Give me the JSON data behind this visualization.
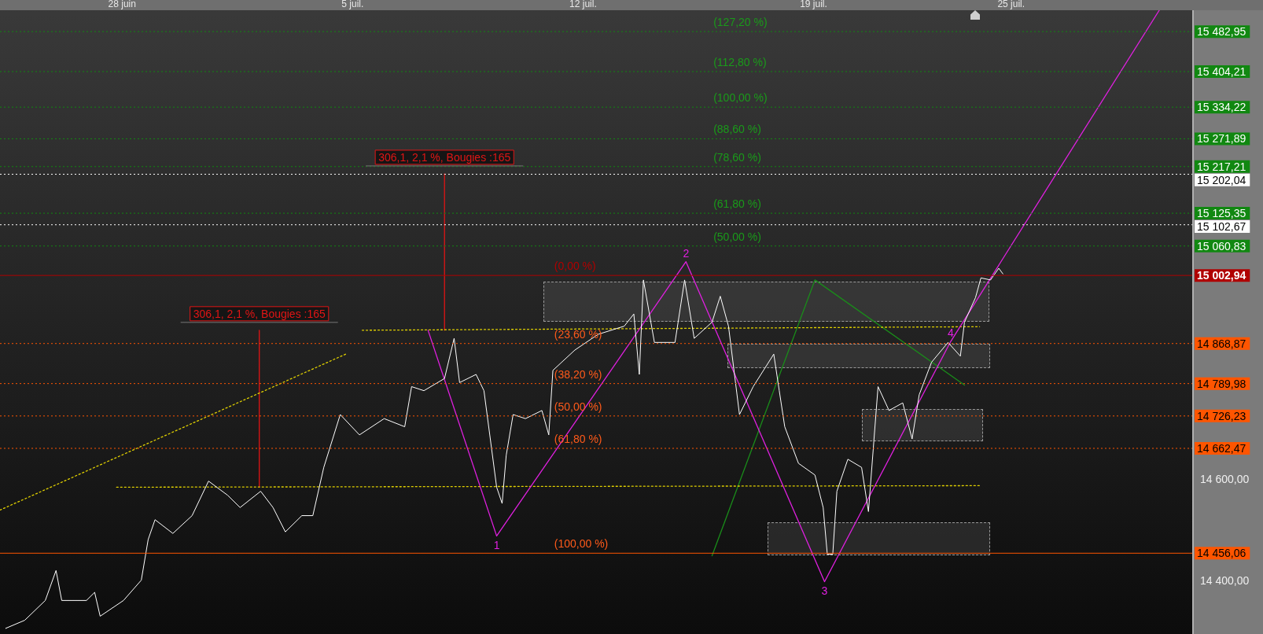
{
  "chart_data": {
    "type": "line",
    "marker": "none",
    "xlim": [
      "--06-24T07:00",
      "--07-30T12:00"
    ],
    "xticks": [
      {
        "value": "--06-28",
        "label": "28 juin"
      },
      {
        "value": "--07-05",
        "label": "5 juil."
      },
      {
        "value": "--07-12",
        "label": "12 juil."
      },
      {
        "value": "--07-19",
        "label": "19 juil."
      },
      {
        "value": "--07-25",
        "label": "25 juil."
      }
    ],
    "ylim": [
      14297,
      15525
    ],
    "yticks": [
      {
        "value": 14400,
        "label": "14 400,00"
      },
      {
        "value": 14600,
        "label": "14 600,00"
      }
    ],
    "series": [
      {
        "color": "#ffffff",
        "line_style": "solid",
        "x": [
          "--06-24T11:00",
          "--06-25T01:00",
          "--06-25T16:00",
          "--06-25T23:50",
          "--06-26T04:00",
          "--06-26T22:00",
          "--06-27T04:00",
          "--06-27T08:00",
          "--06-28T01:00",
          "--06-28T14:00",
          "--06-28T19:00",
          "--06-29T00:00",
          "--06-29T13:00",
          "--06-30T03:00",
          "--06-30T15:00",
          "--07-01T05:00",
          "--07-01T14:00",
          "--07-02T05:00",
          "--07-02T14:00",
          "--07-02T23:00",
          "--07-03T11:00",
          "--07-03T19:00",
          "--07-04T03:00",
          "--07-04T15:00",
          "--07-05T05:00",
          "--07-05T23:00",
          "--07-06T14:00",
          "--07-06T19:00",
          "--07-07T04:00",
          "--07-07T19:00",
          "--07-08T02:00",
          "--07-08T06:00",
          "--07-08T18:00",
          "--07-08T23:45",
          "--07-09T09:00",
          "--07-09T13:00",
          "--07-09T16:00",
          "--07-09T21:00",
          "--07-10T06:00",
          "--07-10T18:00",
          "--07-10T23:00",
          "--07-11T02:00",
          "--07-11T18:00",
          "--07-12T11:00",
          "--07-13T06:00",
          "--07-13T13:00",
          "--07-13T17:00",
          "--07-13T20:00",
          "--07-14T04:00",
          "--07-14T19:00",
          "--07-15T02:00",
          "--07-15T09:00",
          "--07-15T22:00",
          "--07-16T04:00",
          "--07-16T10:00",
          "--07-16T18:00",
          "--07-17T04:00",
          "--07-17T19:00",
          "--07-17T23:00",
          "--07-18T03:00",
          "--07-18T13:00",
          "--07-19T01:00",
          "--07-19T07:00",
          "--07-19T10:00",
          "--07-19T14:00",
          "--07-19T17:00",
          "--07-20T01:00",
          "--07-20T11:00",
          "--07-20T16:00",
          "--07-20T23:00",
          "--07-21T07:00",
          "--07-21T17:00",
          "--07-21T23:50",
          "--07-22T05:00",
          "--07-22T14:00",
          "--07-23T02:00",
          "--07-23T11:00",
          "--07-23T14:00",
          "--07-23T22:00",
          "--07-24T02:00",
          "--07-24T09:00",
          "--07-24T15:00",
          "--07-24T18:00"
        ],
        "values": [
          14308,
          14324,
          14363,
          14422,
          14363,
          14363,
          14379,
          14332,
          14363,
          14403,
          14483,
          14522,
          14495,
          14530,
          14598,
          14570,
          14546,
          14578,
          14546,
          14498,
          14530,
          14530,
          14625,
          14729,
          14689,
          14721,
          14705,
          14784,
          14776,
          14800,
          14879,
          14792,
          14808,
          14776,
          14586,
          14554,
          14649,
          14729,
          14721,
          14737,
          14689,
          14816,
          14856,
          14887,
          14903,
          14927,
          14808,
          14994,
          14871,
          14871,
          14994,
          14879,
          14911,
          14962,
          14903,
          14729,
          14784,
          14848,
          14776,
          14705,
          14633,
          14610,
          14546,
          14454,
          14454,
          14578,
          14641,
          14625,
          14538,
          14784,
          14737,
          14752,
          14681,
          14768,
          14832,
          14871,
          14844,
          14911,
          14959,
          14998,
          14994,
          15017,
          15006
        ]
      },
      {
        "color": "#e020e0",
        "line_style": "solid",
        "x": [
          "--07-07T07:00",
          "--07-09T09:00",
          "--07-15T03:00",
          "--07-19T08:00",
          "--07-23T04:00",
          "--07-29T12:00"
        ],
        "values": [
          14895,
          14490,
          15030,
          14400,
          14873,
          15525
        ]
      },
      {
        "color": "#e0d000",
        "line_style": "dotted",
        "x": [
          "--06-24T07:00",
          "--07-04T19:00"
        ],
        "values": [
          14541,
          14848
        ]
      },
      {
        "color": "#e0d000",
        "line_style": "dotted",
        "x": [
          "--06-27T20:00",
          "--07-24T01:00"
        ],
        "values": [
          14586,
          14589
        ]
      },
      {
        "color": "#e0d000",
        "line_style": "dotted",
        "x": [
          "--07-05T07:00",
          "--07-24T01:00"
        ],
        "values": [
          14895,
          14902
        ]
      },
      {
        "color": "#1a8c1a",
        "line_style": "solid",
        "x": [
          "--07-15T22:00",
          "--07-19T01:00",
          "--07-23T14:00"
        ],
        "values": [
          14451,
          14994,
          14787
        ]
      },
      {
        "color": "#e01515",
        "line_style": "solid",
        "x": [
          "--07-02T04:00",
          "--07-02T04:00"
        ],
        "values": [
          14586,
          14895
        ]
      },
      {
        "color": "#e01515",
        "line_style": "solid",
        "x": [
          "--07-07T19:00",
          "--07-07T19:00"
        ],
        "values": [
          14895,
          15203
        ]
      }
    ],
    "ref_lines": [
      {
        "axis": "y",
        "value": 15482.95,
        "label": "15 482,95",
        "color": "#118811",
        "line_style": "dotted"
      },
      {
        "axis": "y",
        "value": 15404.21,
        "label": "15 404,21",
        "color": "#118811",
        "line_style": "dotted"
      },
      {
        "axis": "y",
        "value": 15334.22,
        "label": "15 334,22",
        "color": "#118811",
        "line_style": "dotted"
      },
      {
        "axis": "y",
        "value": 15271.89,
        "label": "15 271,89",
        "color": "#118811",
        "line_style": "dotted"
      },
      {
        "axis": "y",
        "value": 15217.21,
        "label": "15 217,21",
        "color": "#118811",
        "line_style": "dotted"
      },
      {
        "axis": "y",
        "value": 15202.04,
        "label": "15 202,04",
        "color": "#ffffff",
        "line_style": "dotted"
      },
      {
        "axis": "y",
        "value": 15125.35,
        "label": "15 125,35",
        "color": "#118811",
        "line_style": "dotted"
      },
      {
        "axis": "y",
        "value": 15102.67,
        "label": "15 102,67",
        "color": "#ffffff",
        "line_style": "dotted"
      },
      {
        "axis": "y",
        "value": 15060.83,
        "label": "15 060,83",
        "color": "#118811",
        "line_style": "dotted"
      },
      {
        "axis": "y",
        "value": 15002.94,
        "label": "15 002,94",
        "color": "#b00000",
        "line_style": "solid"
      },
      {
        "axis": "y",
        "value": 14868.87,
        "label": "14 868,87",
        "color": "#ff5500",
        "line_style": "dotted"
      },
      {
        "axis": "y",
        "value": 14789.98,
        "label": "14 789,98",
        "color": "#ff5500",
        "line_style": "dotted"
      },
      {
        "axis": "y",
        "value": 14726.23,
        "label": "14 726,23",
        "color": "#ff5500",
        "line_style": "dotted"
      },
      {
        "axis": "y",
        "value": 14662.47,
        "label": "14 662,47",
        "color": "#ff5500",
        "line_style": "dotted"
      },
      {
        "axis": "y",
        "value": 14456.06,
        "label": "14 456,06",
        "color": "#ff5500",
        "line_style": "solid"
      }
    ],
    "annotations": [
      {
        "text": "(127,20 %)",
        "x": "--07-15T23:00",
        "y": 15482.95
      },
      {
        "text": "(112,80 %)",
        "x": "--07-15T23:00",
        "y": 15404.21
      },
      {
        "text": "(100,00 %)",
        "x": "--07-15T23:00",
        "y": 15334.22
      },
      {
        "text": "(88,60 %)",
        "x": "--07-15T23:00",
        "y": 15271.89
      },
      {
        "text": "(78,60 %)",
        "x": "--07-15T23:00",
        "y": 15217.21
      },
      {
        "text": "(61,80 %)",
        "x": "--07-15T23:00",
        "y": 15125.35
      },
      {
        "text": "(50,00 %)",
        "x": "--07-15T23:00",
        "y": 15060.83
      },
      {
        "text": "(0,00 %)",
        "x": "--07-11T03:00",
        "y": 15002.94
      },
      {
        "text": "(23,60 %)",
        "x": "--07-11T03:00",
        "y": 14868.87
      },
      {
        "text": "(38,20 %)",
        "x": "--07-11T03:00",
        "y": 14789.98
      },
      {
        "text": "(50,00 %)",
        "x": "--07-11T03:00",
        "y": 14726.23
      },
      {
        "text": "(61,80 %)",
        "x": "--07-11T03:00",
        "y": 14662.47
      },
      {
        "text": "(100,00 %)",
        "x": "--07-11T03:00",
        "y": 14456.06
      },
      {
        "text": "1",
        "x": "--07-09T09:00",
        "y": 14490
      },
      {
        "text": "2",
        "x": "--07-15T03:00",
        "y": 15030
      },
      {
        "text": "3",
        "x": "--07-19T08:00",
        "y": 14400
      },
      {
        "text": "4",
        "x": "--07-23T04:00",
        "y": 14873
      },
      {
        "text": "306,1, 2,1 %, Bougies :165",
        "x": "--07-02T04:00",
        "y": 14895
      },
      {
        "text": "306,1, 2,1 %, Bougies :165",
        "x": "--07-07T19:00",
        "y": 15203
      }
    ]
  }
}
